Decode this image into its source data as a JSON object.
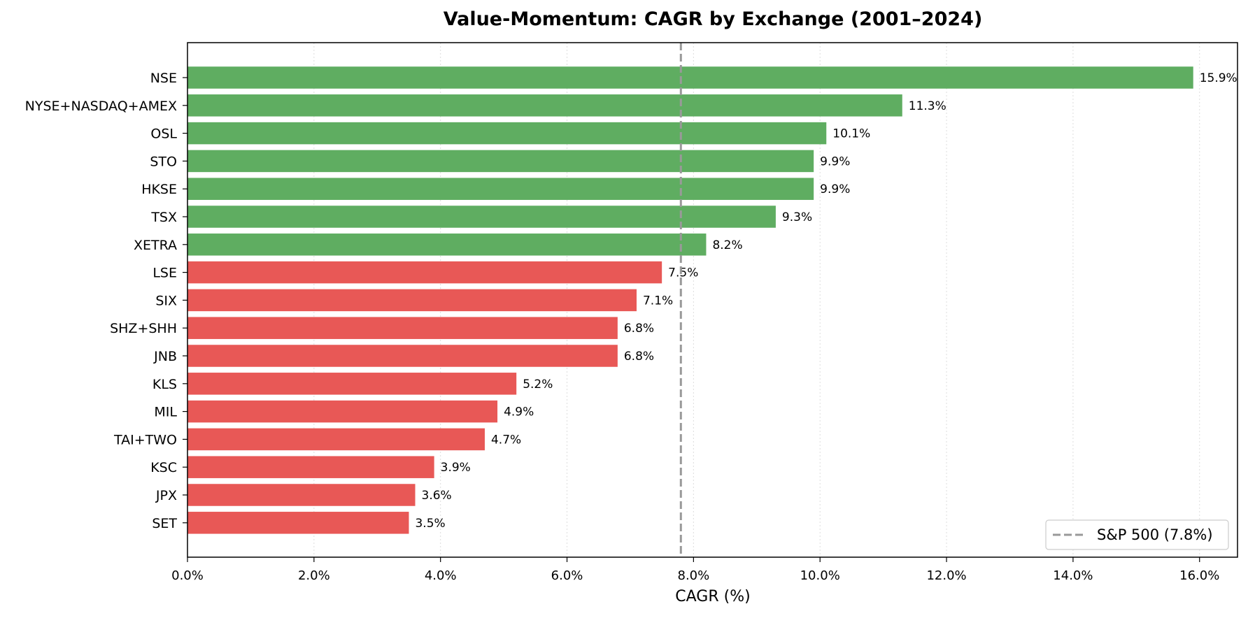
{
  "chart_data": {
    "type": "bar",
    "orientation": "horizontal",
    "title": "Value-Momentum: CAGR by Exchange (2001–2024)",
    "xlabel": "CAGR (%)",
    "ylabel": "",
    "xlim": [
      0,
      16.6
    ],
    "xticks": [
      0,
      2,
      4,
      6,
      8,
      10,
      12,
      14,
      16
    ],
    "xtick_labels": [
      "0.0%",
      "2.0%",
      "4.0%",
      "6.0%",
      "8.0%",
      "10.0%",
      "12.0%",
      "14.0%",
      "16.0%"
    ],
    "grid": "vertical dotted",
    "categories": [
      "NSE",
      "NYSE+NASDAQ+AMEX",
      "OSL",
      "STO",
      "HKSE",
      "TSX",
      "XETRA",
      "LSE",
      "SIX",
      "SHZ+SHH",
      "JNB",
      "KLS",
      "MIL",
      "TAI+TWO",
      "KSC",
      "JPX",
      "SET"
    ],
    "values": [
      15.9,
      11.3,
      10.1,
      9.9,
      9.9,
      9.3,
      8.2,
      7.5,
      7.1,
      6.8,
      6.8,
      5.2,
      4.9,
      4.7,
      3.9,
      3.6,
      3.5
    ],
    "value_labels": [
      "15.9%",
      "11.3%",
      "10.1%",
      "9.9%",
      "9.9%",
      "9.3%",
      "8.2%",
      "7.5%",
      "7.1%",
      "6.8%",
      "6.8%",
      "5.2%",
      "4.9%",
      "4.7%",
      "3.9%",
      "3.6%",
      "3.5%"
    ],
    "reference_line": {
      "value": 7.8,
      "label": "S&P 500 (7.8%)",
      "style": "dashed",
      "color": "#999999"
    },
    "colors": {
      "above_benchmark": "#5fad61",
      "below_benchmark": "#e85856"
    },
    "legend": {
      "placement": "lower-right"
    }
  }
}
